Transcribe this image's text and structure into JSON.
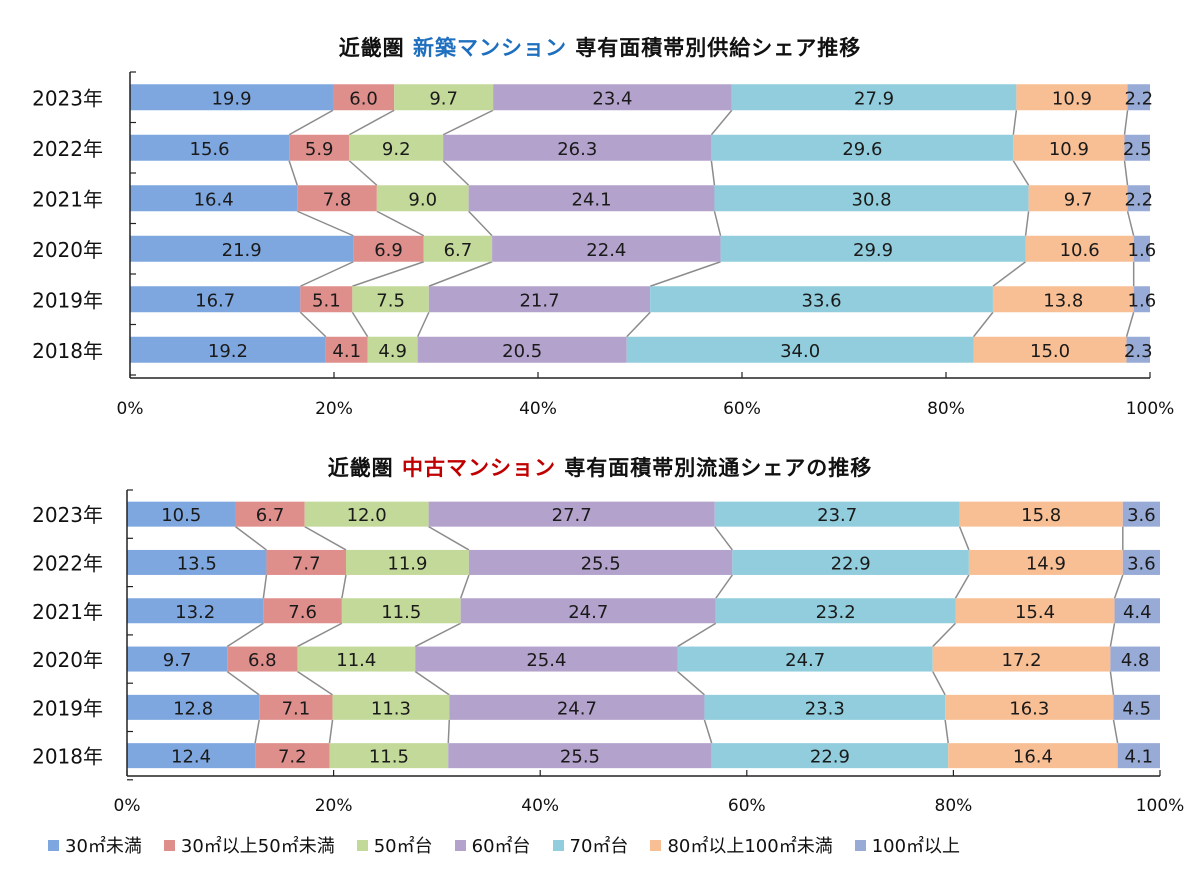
{
  "chart_data": [
    {
      "type": "bar",
      "orientation": "horizontal",
      "stacked": "percent",
      "title_parts": [
        "近畿圏",
        "新築マンション",
        "専有面積帯別供給シェア推移"
      ],
      "categories": [
        "2023年",
        "2022年",
        "2021年",
        "2020年",
        "2019年",
        "2018年"
      ],
      "xlim": [
        0,
        100
      ],
      "x_ticks": [
        "0%",
        "20%",
        "40%",
        "60%",
        "80%",
        "100%"
      ],
      "series": [
        {
          "name": "30㎡未満",
          "values": [
            19.9,
            15.6,
            16.4,
            21.9,
            16.7,
            19.2
          ]
        },
        {
          "name": "30㎡以上50㎡未満",
          "values": [
            6.0,
            5.9,
            7.8,
            6.9,
            5.1,
            4.1
          ]
        },
        {
          "name": "50㎡台",
          "values": [
            9.7,
            9.2,
            9.0,
            6.7,
            7.5,
            4.9
          ]
        },
        {
          "name": "60㎡台",
          "values": [
            23.4,
            26.3,
            24.1,
            22.4,
            21.7,
            20.5
          ]
        },
        {
          "name": "70㎡台",
          "values": [
            27.9,
            29.6,
            30.8,
            29.9,
            33.6,
            34.0
          ]
        },
        {
          "name": "80㎡以上100㎡未満",
          "values": [
            10.9,
            10.9,
            9.7,
            10.6,
            13.8,
            15.0
          ]
        },
        {
          "name": "100㎡以上",
          "values": [
            2.2,
            2.5,
            2.2,
            1.6,
            1.6,
            2.3
          ]
        }
      ]
    },
    {
      "type": "bar",
      "orientation": "horizontal",
      "stacked": "percent",
      "title_parts": [
        "近畿圏",
        "中古マンション",
        "専有面積帯別流通シェアの推移"
      ],
      "categories": [
        "2023年",
        "2022年",
        "2021年",
        "2020年",
        "2019年",
        "2018年"
      ],
      "xlim": [
        0,
        100
      ],
      "x_ticks": [
        "0%",
        "20%",
        "40%",
        "60%",
        "80%",
        "100%"
      ],
      "series": [
        {
          "name": "30㎡未満",
          "values": [
            10.5,
            13.5,
            13.2,
            9.7,
            12.8,
            12.4
          ]
        },
        {
          "name": "30㎡以上50㎡未満",
          "values": [
            6.7,
            7.7,
            7.6,
            6.8,
            7.1,
            7.2
          ]
        },
        {
          "name": "50㎡台",
          "values": [
            12.0,
            11.9,
            11.5,
            11.4,
            11.3,
            11.5
          ]
        },
        {
          "name": "60㎡台",
          "values": [
            27.7,
            25.5,
            24.7,
            25.4,
            24.7,
            25.5
          ]
        },
        {
          "name": "70㎡台",
          "values": [
            23.7,
            22.9,
            23.2,
            24.7,
            23.3,
            22.9
          ]
        },
        {
          "name": "80㎡以上100㎡未満",
          "values": [
            15.8,
            14.9,
            15.4,
            17.2,
            16.3,
            16.4
          ]
        },
        {
          "name": "100㎡以上",
          "values": [
            3.6,
            3.6,
            4.4,
            4.8,
            4.5,
            4.1
          ]
        }
      ]
    }
  ],
  "legend": [
    {
      "label": "30㎡未満",
      "color": "#7fa7df"
    },
    {
      "label": "30㎡以上50㎡未満",
      "color": "#de8f8c"
    },
    {
      "label": "50㎡台",
      "color": "#c3d99a"
    },
    {
      "label": "60㎡台",
      "color": "#b3a2cb"
    },
    {
      "label": "70㎡台",
      "color": "#91cddd"
    },
    {
      "label": "80㎡以上100㎡未満",
      "color": "#f8bf95"
    },
    {
      "label": "100㎡以上",
      "color": "#98aad6"
    }
  ]
}
